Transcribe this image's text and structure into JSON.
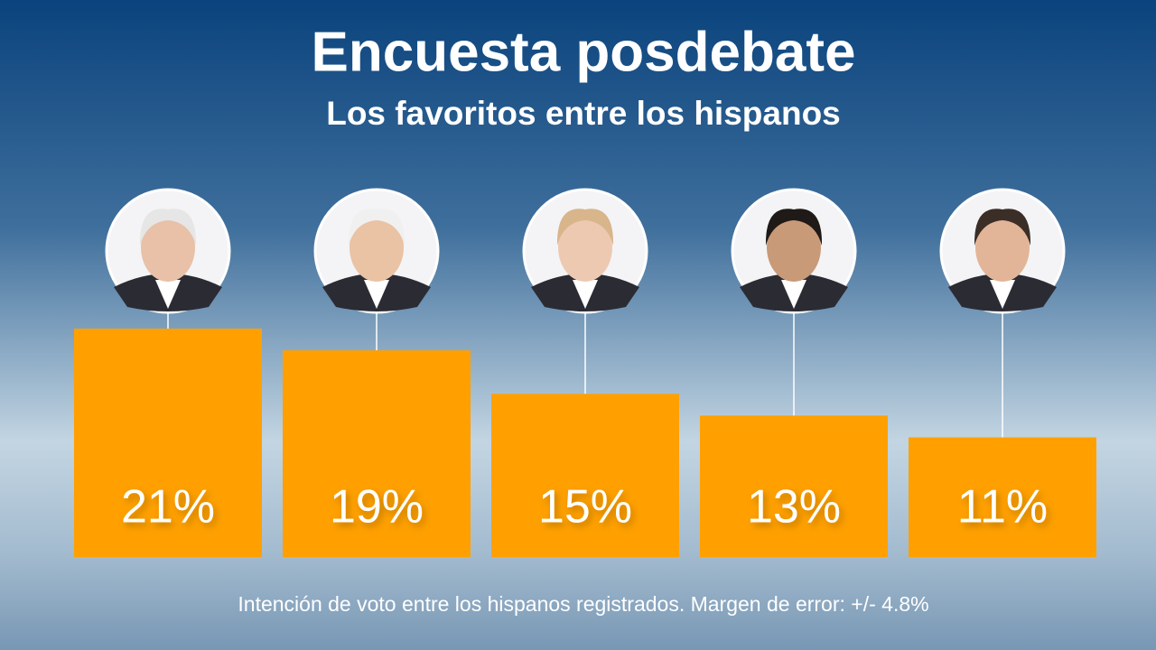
{
  "chart_data": {
    "type": "bar",
    "title": "Encuesta posdebate",
    "subtitle": "Los favoritos entre los hispanos",
    "values": [
      21,
      19,
      15,
      13,
      11
    ],
    "value_labels": [
      "21%",
      "19%",
      "15%",
      "13%",
      "11%"
    ],
    "color": "#ffa000",
    "note": "Intención de voto entre los hispanos registrados. Margen de error: +/- 4.8%"
  }
}
